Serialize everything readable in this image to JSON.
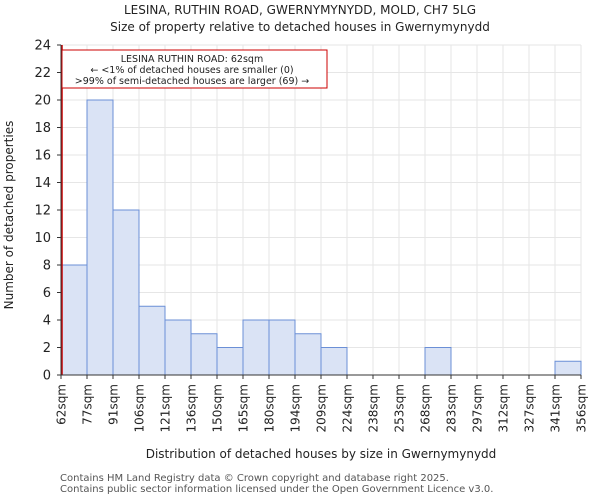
{
  "title_line1": "LESINA, RUTHIN ROAD, GWERNYMYNYDD, MOLD, CH7 5LG",
  "title_line2": "Size of property relative to detached houses in Gwernymynydd",
  "footer_line1": "Contains HM Land Registry data © Crown copyright and database right 2025.",
  "footer_line2": "Contains public sector information licensed under the Open Government Licence v3.0.",
  "chart_data": {
    "type": "bar",
    "title": "Size of property relative to detached houses in Gwernymynydd",
    "xlabel": "Distribution of detached houses by size in Gwernymynydd",
    "ylabel": "Number of detached properties",
    "ylim": [
      0,
      24
    ],
    "yticks": [
      0,
      2,
      4,
      6,
      8,
      10,
      12,
      14,
      16,
      18,
      20,
      22,
      24
    ],
    "bin_edges": [
      "62sqm",
      "77sqm",
      "91sqm",
      "106sqm",
      "121sqm",
      "136sqm",
      "150sqm",
      "165sqm",
      "180sqm",
      "194sqm",
      "209sqm",
      "224sqm",
      "238sqm",
      "253sqm",
      "268sqm",
      "283sqm",
      "297sqm",
      "312sqm",
      "327sqm",
      "341sqm",
      "356sqm"
    ],
    "values": [
      8,
      20,
      12,
      5,
      4,
      3,
      2,
      4,
      4,
      3,
      2,
      0,
      0,
      0,
      2,
      0,
      0,
      0,
      0,
      1
    ],
    "marker_bin_index": 0,
    "annotation": {
      "line1": "LESINA RUTHIN ROAD: 62sqm",
      "line2": "← <1% of detached houses are smaller (0)",
      "line3": ">99% of semi-detached houses are larger (69) →"
    },
    "colors": {
      "bar_fill": "#dae3f5",
      "bar_stroke": "#6b8fd6",
      "marker": "#cc0000",
      "annotation_border": "#cc0000",
      "grid": "#e6e6e6"
    }
  }
}
